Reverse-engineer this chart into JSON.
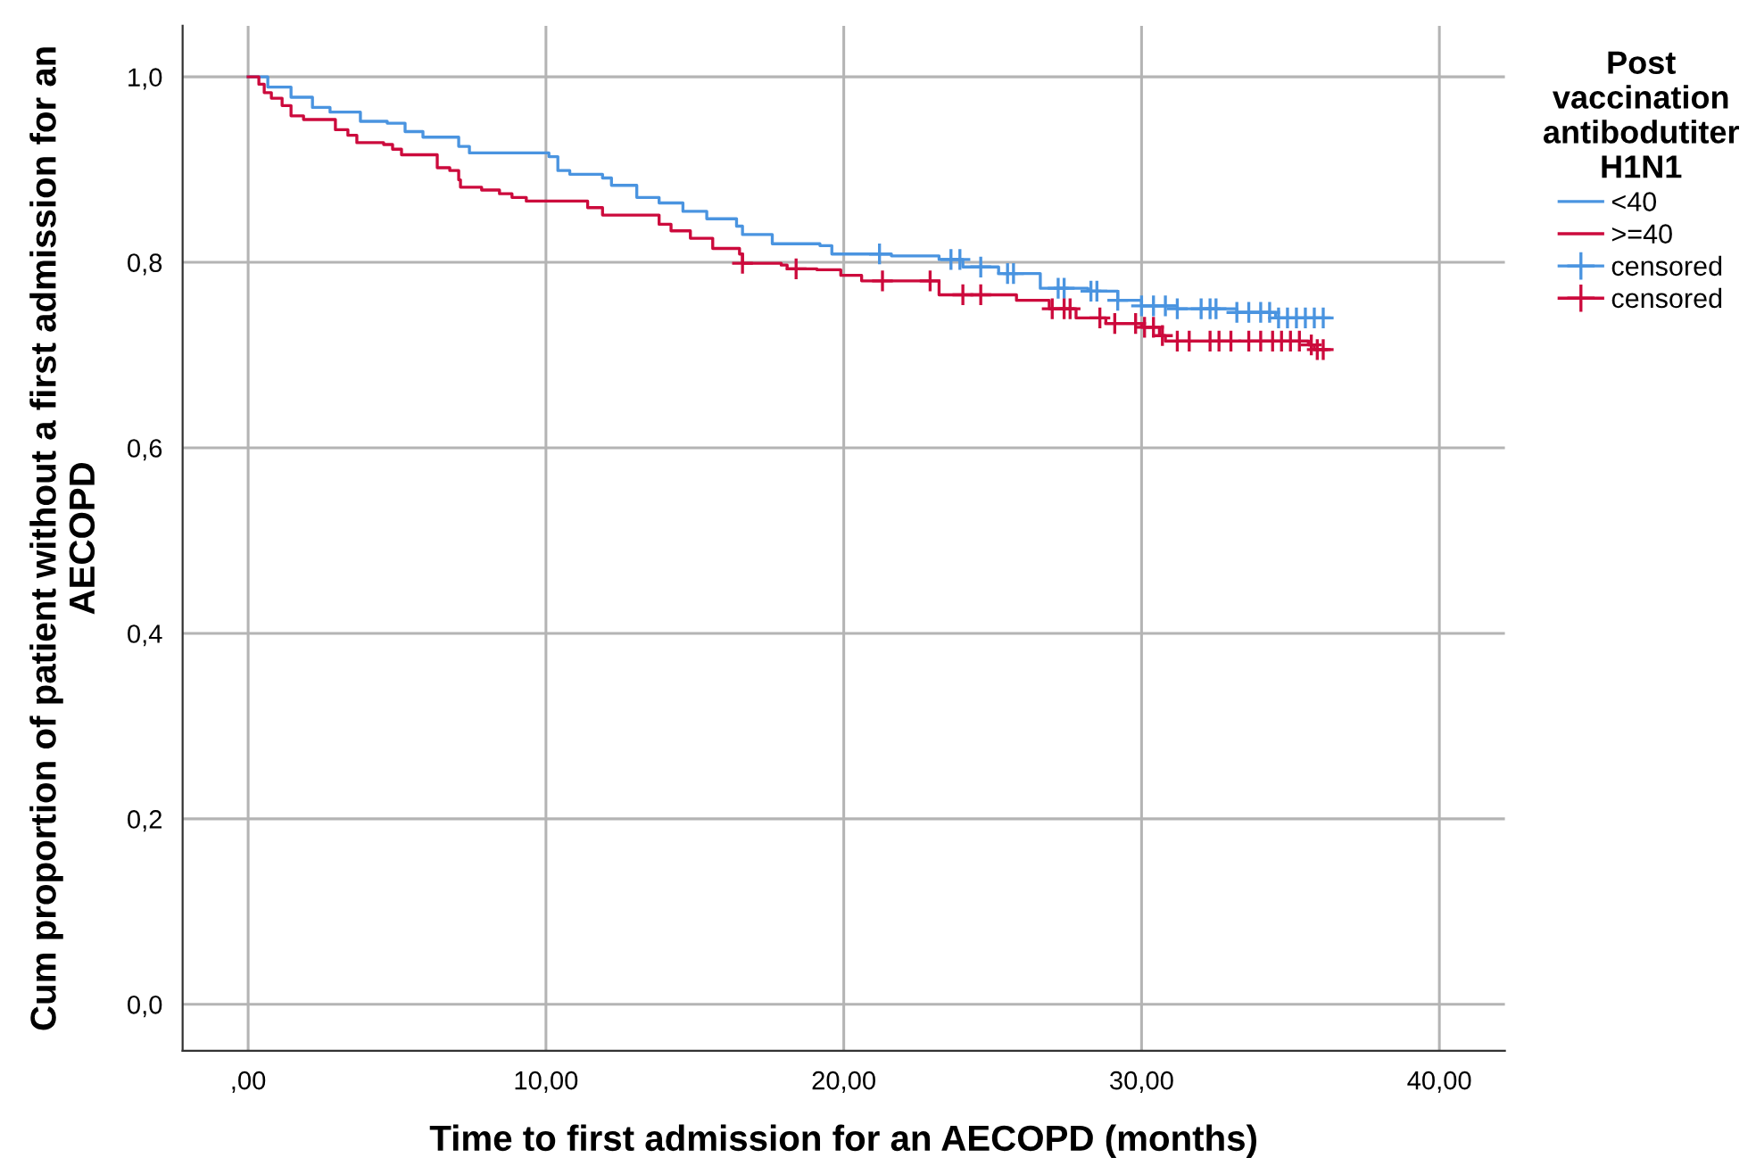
{
  "chart_data": {
    "type": "step",
    "xlabel": "Time to first admission for an AECOPD (months)",
    "ylabel": "Cum proportion of patient without a first admission for an AECOPD",
    "legend_title": "Post vaccination antibodutiter H1N1",
    "xlim": [
      -2.2,
      42.2
    ],
    "ylim": [
      -0.05,
      1.055
    ],
    "xticks": [
      {
        "value": 0,
        "label": ",00"
      },
      {
        "value": 10,
        "label": "10,00"
      },
      {
        "value": 20,
        "label": "20,00"
      },
      {
        "value": 30,
        "label": "30,00"
      },
      {
        "value": 40,
        "label": "40,00"
      }
    ],
    "yticks": [
      {
        "value": 0,
        "label": "0,0"
      },
      {
        "value": 0.2,
        "label": "0,2"
      },
      {
        "value": 0.4,
        "label": "0,4"
      },
      {
        "value": 0.6,
        "label": "0,6"
      },
      {
        "value": 0.8,
        "label": "0,8"
      },
      {
        "value": 1.0,
        "label": "1,0"
      }
    ],
    "grid": true,
    "legend": "top right",
    "series": [
      {
        "name": "<40",
        "color": "#4a94e0",
        "marker": "none",
        "x": [
          0,
          0.66,
          1.44,
          2.16,
          2.75,
          3.77,
          4.67,
          5.27,
          5.87,
          7.07,
          7.43,
          10.1,
          10.4,
          10.8,
          11.9,
          12.2,
          13.05,
          13.8,
          14.6,
          15.4,
          16.4,
          16.6,
          17.6,
          19.2,
          19.6,
          21.6,
          23.2,
          24.0,
          25.2,
          26.6,
          28.2,
          29.2,
          30.0,
          31.2,
          33.2,
          34.5,
          36.3
        ],
        "values": [
          1.0,
          0.989,
          0.978,
          0.967,
          0.962,
          0.952,
          0.95,
          0.941,
          0.935,
          0.925,
          0.918,
          0.914,
          0.899,
          0.895,
          0.891,
          0.883,
          0.87,
          0.864,
          0.855,
          0.847,
          0.839,
          0.83,
          0.82,
          0.818,
          0.809,
          0.807,
          0.803,
          0.795,
          0.788,
          0.772,
          0.769,
          0.759,
          0.753,
          0.75,
          0.746,
          0.74,
          0.74
        ]
      },
      {
        "name": ">=40",
        "color": "#cc0a3c",
        "marker": "none",
        "x": [
          0,
          0.36,
          0.54,
          0.78,
          1.14,
          1.44,
          1.86,
          2.93,
          3.35,
          3.65,
          4.55,
          4.85,
          5.15,
          6.35,
          6.77,
          7.07,
          7.13,
          7.84,
          8.44,
          8.86,
          9.34,
          11.4,
          11.9,
          13.8,
          14.2,
          14.85,
          15.6,
          16.5,
          16.6,
          17.9,
          18.1,
          19.1,
          19.9,
          20.6,
          23.2,
          25.8,
          26.9,
          27.8,
          28.8,
          30.0,
          30.6,
          30.8,
          35.6,
          35.8,
          36.3
        ],
        "values": [
          1.0,
          0.992,
          0.983,
          0.977,
          0.969,
          0.958,
          0.954,
          0.943,
          0.937,
          0.929,
          0.927,
          0.922,
          0.916,
          0.902,
          0.899,
          0.889,
          0.881,
          0.878,
          0.874,
          0.87,
          0.866,
          0.859,
          0.851,
          0.841,
          0.834,
          0.826,
          0.815,
          0.809,
          0.799,
          0.797,
          0.793,
          0.792,
          0.786,
          0.78,
          0.765,
          0.759,
          0.75,
          0.74,
          0.734,
          0.73,
          0.721,
          0.715,
          0.711,
          0.706,
          0.706
        ]
      },
      {
        "name": "censored",
        "type": "scatter",
        "color": "#4a94e0",
        "marker": "cross",
        "x": [
          21.2,
          23.6,
          23.9,
          24.6,
          25.5,
          25.7,
          27.2,
          27.4,
          28.3,
          28.5,
          29.2,
          30.0,
          30.4,
          30.8,
          31.2,
          32.0,
          32.3,
          32.5,
          33.2,
          33.6,
          34.0,
          34.3,
          34.6,
          34.9,
          35.2,
          35.5,
          35.8,
          36.1
        ],
        "values": [
          0.809,
          0.803,
          0.803,
          0.795,
          0.788,
          0.788,
          0.772,
          0.772,
          0.769,
          0.769,
          0.759,
          0.753,
          0.753,
          0.753,
          0.75,
          0.75,
          0.75,
          0.75,
          0.746,
          0.746,
          0.746,
          0.746,
          0.74,
          0.74,
          0.74,
          0.74,
          0.74,
          0.74
        ]
      },
      {
        "name": "censored",
        "type": "scatter",
        "color": "#cc0a3c",
        "marker": "cross",
        "x": [
          16.6,
          18.4,
          21.3,
          22.9,
          24.0,
          24.6,
          27.0,
          27.4,
          27.6,
          28.6,
          29.1,
          29.8,
          30.1,
          30.4,
          30.7,
          31.2,
          31.6,
          32.3,
          32.6,
          33.0,
          33.6,
          34.0,
          34.4,
          34.7,
          35.0,
          35.3,
          35.7,
          35.9,
          36.1
        ],
        "values": [
          0.799,
          0.793,
          0.78,
          0.78,
          0.765,
          0.765,
          0.75,
          0.75,
          0.75,
          0.74,
          0.734,
          0.734,
          0.73,
          0.73,
          0.721,
          0.715,
          0.715,
          0.715,
          0.715,
          0.715,
          0.715,
          0.715,
          0.715,
          0.715,
          0.715,
          0.715,
          0.711,
          0.706,
          0.706
        ]
      }
    ]
  }
}
